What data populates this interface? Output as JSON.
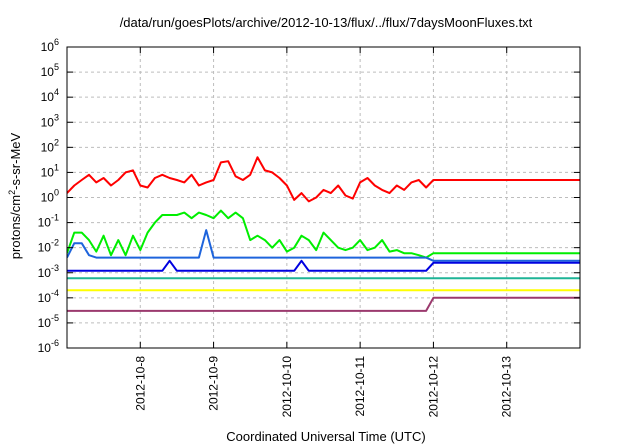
{
  "chart_data": {
    "type": "line",
    "title": "/data/run/goesPlots/archive/2012-10-13/flux/../flux/7daysMoonFluxes.txt",
    "xlabel": "Coordinated Universal Time (UTC)",
    "ylabel": "protons/cm2-s-sr-MeV",
    "ylabel_main": "protons/cm",
    "ylabel_sup": "2",
    "ylabel_rest": "-s-sr-MeV",
    "yscale": "log",
    "ylim": [
      1e-06,
      1000000.0
    ],
    "xlim": [
      "2012-10-07 00:00",
      "2012-10-14 00:00"
    ],
    "grid": true,
    "y_ticks": [
      {
        "value": 1e-06,
        "base": "10",
        "exp": "-6"
      },
      {
        "value": 1e-05,
        "base": "10",
        "exp": "-5"
      },
      {
        "value": 0.0001,
        "base": "10",
        "exp": "-4"
      },
      {
        "value": 0.001,
        "base": "10",
        "exp": "-3"
      },
      {
        "value": 0.01,
        "base": "10",
        "exp": "-2"
      },
      {
        "value": 0.1,
        "base": "10",
        "exp": "-1"
      },
      {
        "value": 1.0,
        "base": "10",
        "exp": "0"
      },
      {
        "value": 10.0,
        "base": "10",
        "exp": "1"
      },
      {
        "value": 100.0,
        "base": "10",
        "exp": "2"
      },
      {
        "value": 1000.0,
        "base": "10",
        "exp": "3"
      },
      {
        "value": 10000.0,
        "base": "10",
        "exp": "4"
      },
      {
        "value": 100000.0,
        "base": "10",
        "exp": "5"
      },
      {
        "value": 1000000.0,
        "base": "10",
        "exp": "6"
      }
    ],
    "x_ticks": [
      "2012-10-8",
      "2012-10-9",
      "2012-10-10",
      "2012-10-11",
      "2012-10-12",
      "2012-10-13"
    ],
    "x_tick_days": [
      1,
      2,
      3,
      4,
      5,
      6
    ],
    "x_days": [
      0.0,
      0.1,
      0.2,
      0.3,
      0.4,
      0.5,
      0.6,
      0.7,
      0.8,
      0.9,
      1.0,
      1.1,
      1.2,
      1.3,
      1.4,
      1.5,
      1.6,
      1.7,
      1.8,
      1.9,
      2.0,
      2.1,
      2.2,
      2.3,
      2.4,
      2.5,
      2.6,
      2.7,
      2.8,
      2.9,
      3.0,
      3.1,
      3.2,
      3.3,
      3.4,
      3.5,
      3.6,
      3.7,
      3.8,
      3.9,
      4.0,
      4.1,
      4.2,
      4.3,
      4.4,
      4.5,
      4.6,
      4.7,
      4.8,
      4.9,
      5.0,
      5.1,
      5.2,
      5.3,
      5.4,
      5.5,
      5.6,
      5.7,
      5.8,
      5.9,
      6.0,
      6.1,
      6.2,
      6.3,
      6.4,
      6.5,
      6.6,
      6.7,
      6.8,
      6.9,
      7.0
    ],
    "series": [
      {
        "color": "#ff0000",
        "values": [
          1.5,
          3,
          5,
          8,
          4,
          6,
          3,
          5,
          10,
          12,
          3,
          2.5,
          6,
          8,
          6,
          5,
          4,
          8,
          3,
          4,
          5,
          25,
          28,
          7,
          5,
          8,
          40,
          12,
          10,
          6,
          3,
          0.8,
          1.5,
          0.7,
          1,
          2,
          1.5,
          3,
          1.2,
          0.9,
          4,
          6,
          3,
          2,
          1.5,
          3,
          2,
          4,
          5,
          2.5,
          5,
          5,
          5,
          5,
          5,
          5,
          5,
          5,
          5,
          5,
          5,
          5,
          5,
          5,
          5,
          5,
          5,
          5,
          5,
          5,
          5
        ]
      },
      {
        "color": "#00ee00",
        "values": [
          0.006,
          0.04,
          0.04,
          0.02,
          0.007,
          0.03,
          0.005,
          0.02,
          0.005,
          0.03,
          0.008,
          0.04,
          0.1,
          0.2,
          0.2,
          0.2,
          0.25,
          0.15,
          0.25,
          0.2,
          0.15,
          0.3,
          0.15,
          0.25,
          0.15,
          0.02,
          0.03,
          0.02,
          0.01,
          0.02,
          0.007,
          0.01,
          0.03,
          0.02,
          0.008,
          0.04,
          0.02,
          0.01,
          0.008,
          0.01,
          0.02,
          0.008,
          0.01,
          0.02,
          0.007,
          0.008,
          0.006,
          0.006,
          0.005,
          0.004,
          0.006,
          0.006,
          0.006,
          0.006,
          0.006,
          0.006,
          0.006,
          0.006,
          0.006,
          0.006,
          0.006,
          0.006,
          0.006,
          0.006,
          0.006,
          0.006,
          0.006,
          0.006,
          0.006,
          0.006,
          0.006
        ]
      },
      {
        "color": "#1e64dc",
        "values": [
          0.004,
          0.015,
          0.015,
          0.005,
          0.004,
          0.004,
          0.004,
          0.004,
          0.004,
          0.004,
          0.004,
          0.004,
          0.004,
          0.004,
          0.004,
          0.004,
          0.004,
          0.004,
          0.004,
          0.05,
          0.004,
          0.004,
          0.004,
          0.004,
          0.004,
          0.004,
          0.004,
          0.004,
          0.004,
          0.004,
          0.004,
          0.004,
          0.004,
          0.004,
          0.004,
          0.004,
          0.004,
          0.004,
          0.004,
          0.004,
          0.004,
          0.004,
          0.004,
          0.004,
          0.004,
          0.004,
          0.004,
          0.004,
          0.004,
          0.004,
          0.003,
          0.003,
          0.003,
          0.003,
          0.003,
          0.003,
          0.003,
          0.003,
          0.003,
          0.003,
          0.003,
          0.003,
          0.003,
          0.003,
          0.003,
          0.003,
          0.003,
          0.003,
          0.003,
          0.003,
          0.003
        ]
      },
      {
        "color": "#0000e0",
        "values": [
          0.0012,
          0.0012,
          0.0012,
          0.0012,
          0.0012,
          0.0012,
          0.0012,
          0.0012,
          0.0012,
          0.0012,
          0.0012,
          0.0012,
          0.0012,
          0.0012,
          0.003,
          0.0012,
          0.0012,
          0.0012,
          0.0012,
          0.0012,
          0.0012,
          0.0012,
          0.0012,
          0.0012,
          0.0012,
          0.0012,
          0.0012,
          0.0012,
          0.0012,
          0.0012,
          0.0012,
          0.0012,
          0.003,
          0.0012,
          0.0012,
          0.0012,
          0.0012,
          0.0012,
          0.0012,
          0.0012,
          0.0012,
          0.0012,
          0.0012,
          0.0012,
          0.0012,
          0.0012,
          0.0012,
          0.0012,
          0.0012,
          0.0012,
          0.0025,
          0.0025,
          0.0025,
          0.0025,
          0.0025,
          0.0025,
          0.0025,
          0.0025,
          0.0025,
          0.0025,
          0.0025,
          0.0025,
          0.0025,
          0.0025,
          0.0025,
          0.0025,
          0.0025,
          0.0025,
          0.0025,
          0.0025,
          0.0025
        ]
      },
      {
        "color": "#1eb496",
        "values": [
          0.0006,
          0.0006,
          0.0006,
          0.0006,
          0.0006,
          0.0006,
          0.0006,
          0.0006,
          0.0006,
          0.0006,
          0.0006,
          0.0006,
          0.0006,
          0.0006,
          0.0006,
          0.0006,
          0.0006,
          0.0006,
          0.0006,
          0.0006,
          0.0006,
          0.0006,
          0.0006,
          0.0006,
          0.0006,
          0.0006,
          0.0006,
          0.0006,
          0.0006,
          0.0006,
          0.0006,
          0.0006,
          0.0006,
          0.0006,
          0.0006,
          0.0006,
          0.0006,
          0.0006,
          0.0006,
          0.0006,
          0.0006,
          0.0006,
          0.0006,
          0.0006,
          0.0006,
          0.0006,
          0.0006,
          0.0006,
          0.0006,
          0.0006,
          0.0006,
          0.0006,
          0.0006,
          0.0006,
          0.0006,
          0.0006,
          0.0006,
          0.0006,
          0.0006,
          0.0006,
          0.0006,
          0.0006,
          0.0006,
          0.0006,
          0.0006,
          0.0006,
          0.0006,
          0.0006,
          0.0006,
          0.0006,
          0.0006
        ]
      },
      {
        "color": "#ffff00",
        "values": [
          0.0002,
          0.0002,
          0.0002,
          0.0002,
          0.0002,
          0.0002,
          0.0002,
          0.0002,
          0.0002,
          0.0002,
          0.0002,
          0.0002,
          0.0002,
          0.0002,
          0.0002,
          0.0002,
          0.0002,
          0.0002,
          0.0002,
          0.0002,
          0.0002,
          0.0002,
          0.0002,
          0.0002,
          0.0002,
          0.0002,
          0.0002,
          0.0002,
          0.0002,
          0.0002,
          0.0002,
          0.0002,
          0.0002,
          0.0002,
          0.0002,
          0.0002,
          0.0002,
          0.0002,
          0.0002,
          0.0002,
          0.0002,
          0.0002,
          0.0002,
          0.0002,
          0.0002,
          0.0002,
          0.0002,
          0.0002,
          0.0002,
          0.0002,
          0.0002,
          0.0002,
          0.0002,
          0.0002,
          0.0002,
          0.0002,
          0.0002,
          0.0002,
          0.0002,
          0.0002,
          0.0002,
          0.0002,
          0.0002,
          0.0002,
          0.0002,
          0.0002,
          0.0002,
          0.0002,
          0.0002,
          0.0002,
          0.0002
        ]
      },
      {
        "color": "#9b3a6e",
        "values": [
          3e-05,
          3e-05,
          3e-05,
          3e-05,
          3e-05,
          3e-05,
          3e-05,
          3e-05,
          3e-05,
          3e-05,
          3e-05,
          3e-05,
          3e-05,
          3e-05,
          3e-05,
          3e-05,
          3e-05,
          3e-05,
          3e-05,
          3e-05,
          3e-05,
          3e-05,
          3e-05,
          3e-05,
          3e-05,
          3e-05,
          3e-05,
          3e-05,
          3e-05,
          3e-05,
          3e-05,
          3e-05,
          3e-05,
          3e-05,
          3e-05,
          3e-05,
          3e-05,
          3e-05,
          3e-05,
          3e-05,
          3e-05,
          3e-05,
          3e-05,
          3e-05,
          3e-05,
          3e-05,
          3e-05,
          3e-05,
          3e-05,
          3e-05,
          0.0001,
          0.0001,
          0.0001,
          0.0001,
          0.0001,
          0.0001,
          0.0001,
          0.0001,
          0.0001,
          0.0001,
          0.0001,
          0.0001,
          0.0001,
          0.0001,
          0.0001,
          0.0001,
          0.0001,
          0.0001,
          0.0001,
          0.0001,
          0.0001
        ]
      }
    ]
  }
}
